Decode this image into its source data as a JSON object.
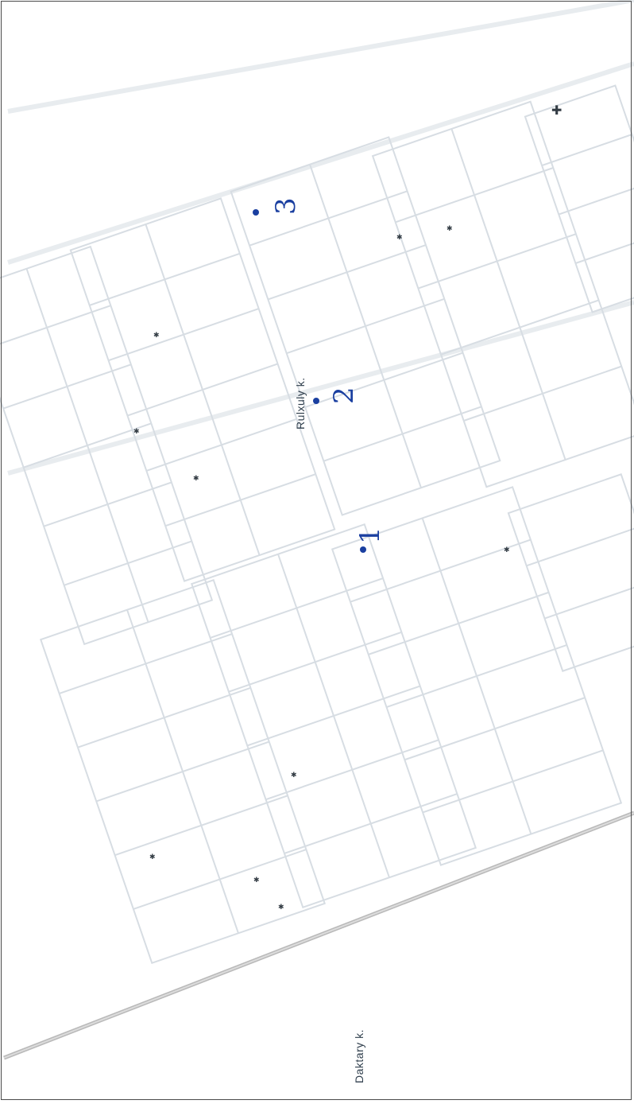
{
  "map": {
    "street_labels": [
      "Rulxuly k.",
      "Daktary k."
    ],
    "pins": [
      {
        "label": "1"
      },
      {
        "label": "2"
      },
      {
        "label": "3"
      }
    ],
    "colors": {
      "background": "#ffffff",
      "grid_lines": "#d7dde3",
      "road": "#b9b9b9",
      "pin": "#1a3fa0",
      "marker": "#333c44"
    },
    "symbols": [
      "small-cross-marker",
      "cross-icon"
    ]
  }
}
